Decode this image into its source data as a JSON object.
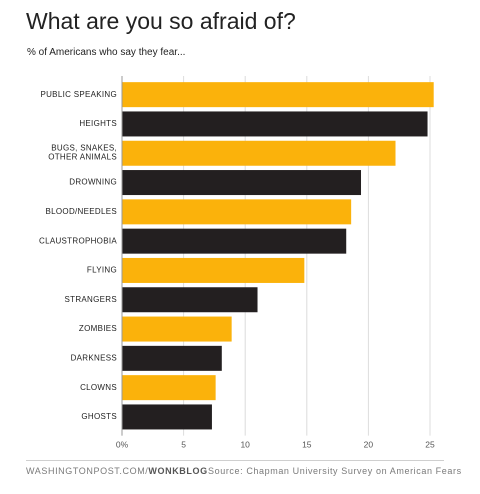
{
  "header": {
    "title": "What are you so afraid of?",
    "subtitle": "% of Americans who say they fear..."
  },
  "footer": {
    "site": "WASHINGTONPOST.COM/",
    "brand": "WONKBLOG",
    "source": "Source: Chapman University Survey on American Fears"
  },
  "colors": {
    "bar_gold": "#FBB20B",
    "bar_dark": "#231F20",
    "grid": "#dcdcdc",
    "axis": "#999999",
    "text": "#222222"
  },
  "chart_data": {
    "type": "bar",
    "orientation": "horizontal",
    "title": "What are you so afraid of?",
    "subtitle": "% of Americans who say they fear...",
    "categories": [
      [
        "PUBLIC SPEAKING"
      ],
      [
        "HEIGHTS"
      ],
      [
        "BUGS, SNAKES,",
        "OTHER ANIMALS"
      ],
      [
        "DROWNING"
      ],
      [
        "BLOOD/NEEDLES"
      ],
      [
        "CLAUSTROPHOBIA"
      ],
      [
        "FLYING"
      ],
      [
        "STRANGERS"
      ],
      [
        "ZOMBIES"
      ],
      [
        "DARKNESS"
      ],
      [
        "CLOWNS"
      ],
      [
        "GHOSTS"
      ]
    ],
    "values": [
      25.3,
      24.8,
      22.2,
      19.4,
      18.6,
      18.2,
      14.8,
      11.0,
      8.9,
      8.1,
      7.6,
      7.3
    ],
    "bar_colors": [
      "gold",
      "dark",
      "gold",
      "dark",
      "gold",
      "dark",
      "gold",
      "dark",
      "gold",
      "dark",
      "gold",
      "dark"
    ],
    "xlim": [
      0,
      25
    ],
    "xticks": [
      0,
      5,
      10,
      15,
      20,
      25
    ],
    "xtick_labels": [
      "0%",
      "5",
      "10",
      "15",
      "20",
      "25"
    ],
    "grid": true,
    "legend": "none"
  }
}
